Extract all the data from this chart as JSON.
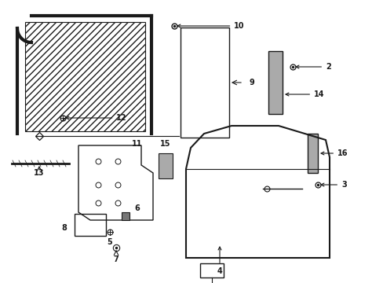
{
  "bg_color": "#ffffff",
  "line_color": "#1a1a1a",
  "figsize": [
    4.89,
    3.6
  ],
  "dpi": 100,
  "gray": "#888888",
  "lightgray": "#bbbbbb"
}
